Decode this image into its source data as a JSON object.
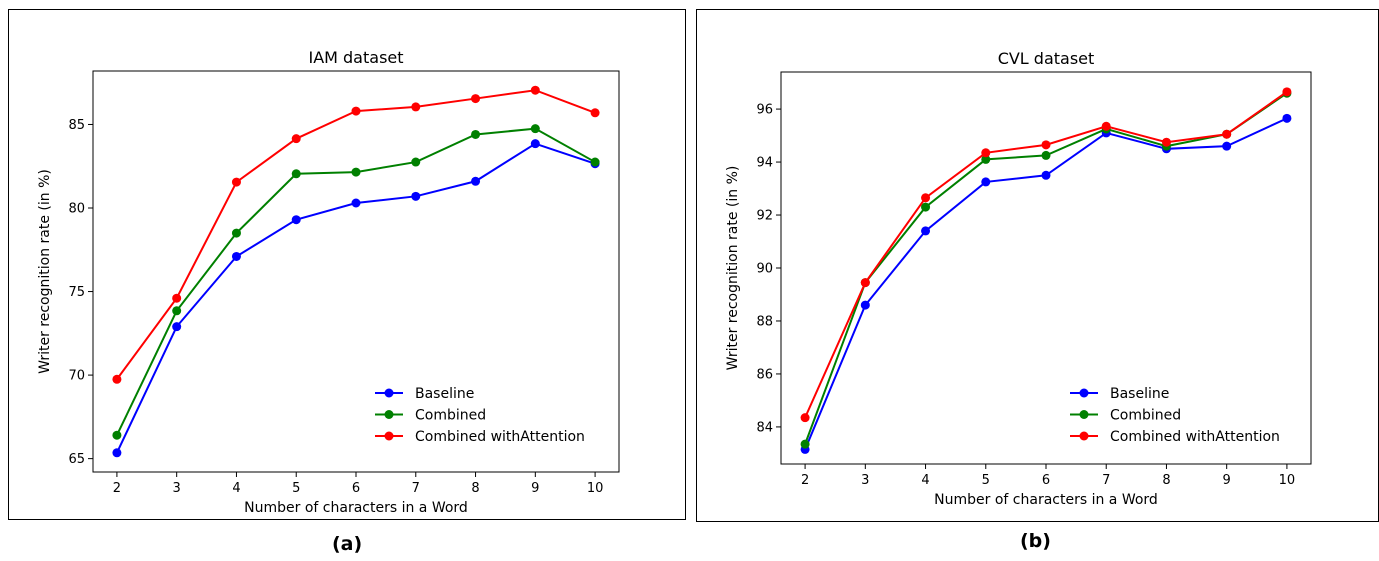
{
  "captions": {
    "a": "(a)",
    "b": "(b)"
  },
  "colors": {
    "Baseline": "#0000ff",
    "Combined": "#008000",
    "Combined withAttention": "#ff0000"
  },
  "chart_data": [
    {
      "type": "line",
      "title": "IAM dataset",
      "xlabel": "Number of characters in a Word",
      "ylabel": "Writer recognition rate (in %)",
      "x": [
        2,
        3,
        4,
        5,
        6,
        7,
        8,
        9,
        10
      ],
      "xticks": [
        "2",
        "3",
        "4",
        "5",
        "6",
        "7",
        "8",
        "9",
        "10"
      ],
      "yticks": [
        "65",
        "70",
        "75",
        "80",
        "85"
      ],
      "ytick_values": [
        65,
        70,
        75,
        80,
        85
      ],
      "xlim": [
        1.6,
        10.4
      ],
      "ylim": [
        64.2,
        88.2
      ],
      "legend_position": "lower-right",
      "grid": false,
      "series": [
        {
          "name": "Baseline",
          "color": "#0000ff",
          "values": [
            65.35,
            72.9,
            77.1,
            79.3,
            80.3,
            80.7,
            81.6,
            83.85,
            82.65
          ]
        },
        {
          "name": "Combined",
          "color": "#008000",
          "values": [
            66.4,
            73.85,
            78.5,
            82.05,
            82.15,
            82.75,
            84.4,
            84.75,
            82.75
          ]
        },
        {
          "name": "Combined withAttention",
          "color": "#ff0000",
          "values": [
            69.75,
            74.6,
            81.55,
            84.15,
            85.8,
            86.05,
            86.55,
            87.05,
            85.7
          ]
        }
      ]
    },
    {
      "type": "line",
      "title": "CVL dataset",
      "xlabel": "Number of characters in a Word",
      "ylabel": "Writer recognition rate (in %)",
      "x": [
        2,
        3,
        4,
        5,
        6,
        7,
        8,
        9,
        10
      ],
      "xticks": [
        "2",
        "3",
        "4",
        "5",
        "6",
        "7",
        "8",
        "9",
        "10"
      ],
      "yticks": [
        "84",
        "86",
        "88",
        "90",
        "92",
        "94",
        "96"
      ],
      "ytick_values": [
        84,
        86,
        88,
        90,
        92,
        94,
        96
      ],
      "xlim": [
        1.6,
        10.4
      ],
      "ylim": [
        82.6,
        97.4
      ],
      "legend_position": "lower-right",
      "grid": false,
      "series": [
        {
          "name": "Baseline",
          "color": "#0000ff",
          "values": [
            83.15,
            88.6,
            91.4,
            93.25,
            93.5,
            95.1,
            94.5,
            94.6,
            95.65
          ]
        },
        {
          "name": "Combined",
          "color": "#008000",
          "values": [
            83.35,
            89.45,
            92.3,
            94.1,
            94.25,
            95.25,
            94.6,
            95.05,
            96.6
          ]
        },
        {
          "name": "Combined withAttention",
          "color": "#ff0000",
          "values": [
            84.35,
            89.45,
            92.65,
            94.35,
            94.65,
            95.35,
            94.75,
            95.05,
            96.65
          ]
        }
      ]
    }
  ]
}
